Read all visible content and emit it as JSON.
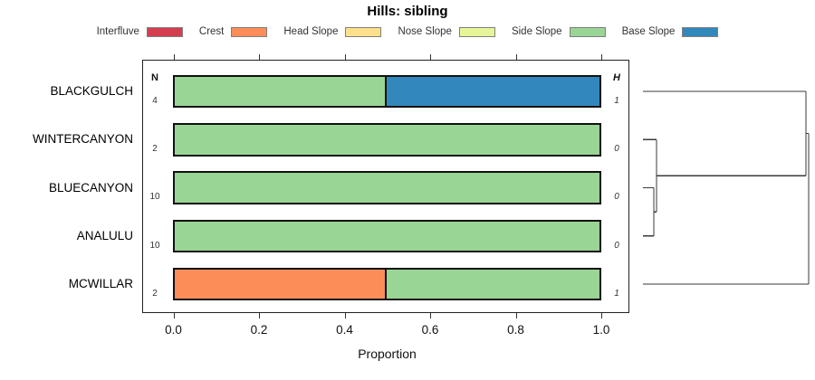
{
  "title": "Hills: sibling",
  "legend": {
    "items": [
      {
        "label": "Interfluve",
        "color": "#D53E4F"
      },
      {
        "label": "Crest",
        "color": "#FC8D59"
      },
      {
        "label": "Head Slope",
        "color": "#FEE08B"
      },
      {
        "label": "Nose Slope",
        "color": "#E6F598"
      },
      {
        "label": "Side Slope",
        "color": "#99D594"
      },
      {
        "label": "Base Slope",
        "color": "#3288BD"
      }
    ]
  },
  "chart_data": {
    "type": "bar",
    "orientation": "horizontal",
    "stacked": true,
    "title": "Hills: sibling",
    "xlabel": "Proportion",
    "xlim": [
      0,
      1
    ],
    "x_ticks": [
      {
        "value": 0.0,
        "label": "0.0"
      },
      {
        "value": 0.2,
        "label": "0.2"
      },
      {
        "value": 0.4,
        "label": "0.4"
      },
      {
        "value": 0.6,
        "label": "0.6"
      },
      {
        "value": 0.8,
        "label": "0.8"
      },
      {
        "value": 1.0,
        "label": "1.0"
      }
    ],
    "categories": [
      "Interfluve",
      "Crest",
      "Head Slope",
      "Nose Slope",
      "Side Slope",
      "Base Slope"
    ],
    "n_header": "N",
    "h_header": "H",
    "rows": [
      {
        "label": "BLACKGULCH",
        "n": "4",
        "h": "1",
        "segments": [
          {
            "category": "Side Slope",
            "value": 0.5
          },
          {
            "category": "Base Slope",
            "value": 0.5
          }
        ]
      },
      {
        "label": "WINTERCANYON",
        "n": "2",
        "h": "0",
        "segments": [
          {
            "category": "Side Slope",
            "value": 1.0
          }
        ]
      },
      {
        "label": "BLUECANYON",
        "n": "10",
        "h": "0",
        "segments": [
          {
            "category": "Side Slope",
            "value": 1.0
          }
        ]
      },
      {
        "label": "ANALULU",
        "n": "10",
        "h": "0",
        "segments": [
          {
            "category": "Side Slope",
            "value": 1.0
          }
        ]
      },
      {
        "label": "MCWILLAR",
        "n": "2",
        "h": "1",
        "segments": [
          {
            "category": "Crest",
            "value": 0.5
          },
          {
            "category": "Side Slope",
            "value": 0.5
          }
        ]
      }
    ],
    "dendrogram": {
      "leaf_order": [
        "BLACKGULCH",
        "WINTERCANYON",
        "BLUECANYON",
        "ANALULU",
        "MCWILLAR"
      ],
      "segments": [
        {
          "x1": 0,
          "y1": 1,
          "x2": 0.984,
          "y2": 1
        },
        {
          "x1": 0,
          "y1": 2,
          "x2": 0.082,
          "y2": 2
        },
        {
          "x1": 0,
          "y1": 3,
          "x2": 0.066,
          "y2": 3
        },
        {
          "x1": 0,
          "y1": 4,
          "x2": 0.066,
          "y2": 4
        },
        {
          "x1": 0.066,
          "y1": 3,
          "x2": 0.066,
          "y2": 4
        },
        {
          "x1": 0.066,
          "y1": 3.5,
          "x2": 0.082,
          "y2": 3.5
        },
        {
          "x1": 0.082,
          "y1": 2,
          "x2": 0.082,
          "y2": 3.5
        },
        {
          "x1": 0.082,
          "y1": 2.75,
          "x2": 0.984,
          "y2": 2.75
        },
        {
          "x1": 0.984,
          "y1": 1,
          "x2": 0.984,
          "y2": 2.75
        },
        {
          "x1": 0.984,
          "y1": 1.875,
          "x2": 1,
          "y2": 1.875
        },
        {
          "x1": 1,
          "y1": 1.875,
          "x2": 1,
          "y2": 5
        },
        {
          "x1": 0,
          "y1": 5,
          "x2": 1,
          "y2": 5
        }
      ]
    }
  }
}
